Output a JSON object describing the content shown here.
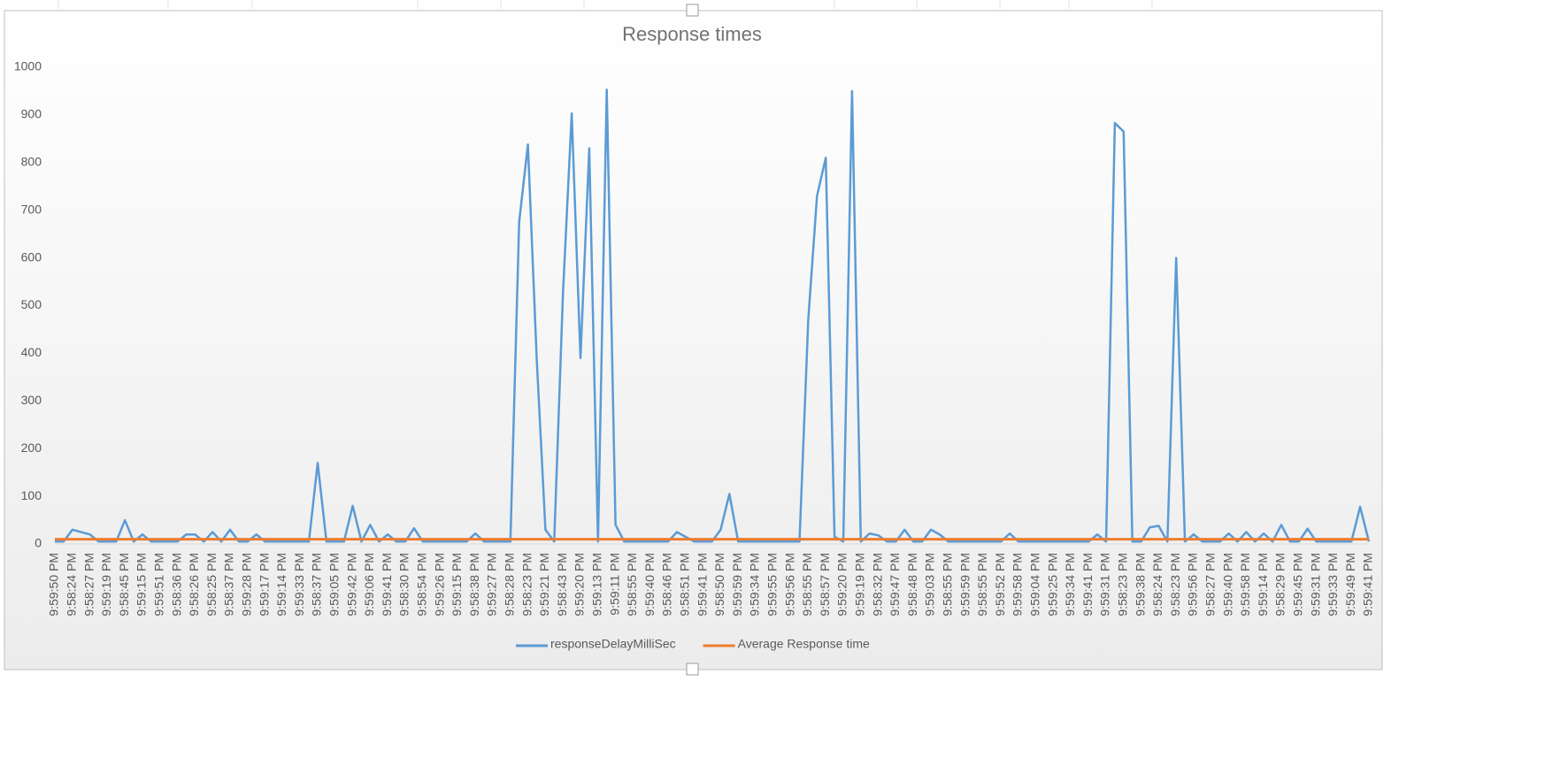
{
  "chart_data": {
    "type": "line",
    "title": "Response times",
    "categories": [
      "9:59:50 PM",
      null,
      "9:58:24 PM",
      null,
      "9:58:27 PM",
      null,
      "9:59:19 PM",
      null,
      "9:58:45 PM",
      null,
      "9:59:15 PM",
      null,
      "9:59:51 PM",
      null,
      "9:58:36 PM",
      null,
      "9:58:26 PM",
      null,
      "9:58:25 PM",
      null,
      "9:58:37 PM",
      null,
      "9:59:28 PM",
      null,
      "9:59:17 PM",
      null,
      "9:59:14 PM",
      null,
      "9:59:33 PM",
      null,
      "9:58:37 PM",
      null,
      "9:59:05 PM",
      null,
      "9:59:42 PM",
      null,
      "9:59:06 PM",
      null,
      "9:59:41 PM",
      null,
      "9:58:30 PM",
      null,
      "9:58:54 PM",
      null,
      "9:59:26 PM",
      null,
      "9:59:15 PM",
      null,
      "9:58:38 PM",
      null,
      "9:59:27 PM",
      null,
      "9:58:28 PM",
      null,
      "9:58:23 PM",
      null,
      "9:59:21 PM",
      null,
      "9:58:43 PM",
      null,
      "9:59:20 PM",
      null,
      "9:59:13 PM",
      null,
      "9:59:11 PM",
      null,
      "9:58:55 PM",
      null,
      "9:59:40 PM",
      null,
      "9:58:46 PM",
      null,
      "9:58:51 PM",
      null,
      "9:59:41 PM",
      null,
      "9:58:50 PM",
      null,
      "9:59:59 PM",
      null,
      "9:59:34 PM",
      null,
      "9:59:55 PM",
      null,
      "9:59:56 PM",
      null,
      "9:58:55 PM",
      null,
      "9:58:57 PM",
      null,
      "9:59:20 PM",
      null,
      "9:59:19 PM",
      null,
      "9:58:32 PM",
      null,
      "9:59:47 PM",
      null,
      "9:58:48 PM",
      null,
      "9:59:03 PM",
      null,
      "9:58:55 PM",
      null,
      "9:59:59 PM",
      null,
      "9:58:55 PM",
      null,
      "9:59:52 PM",
      null,
      "9:59:58 PM",
      null,
      "9:59:04 PM",
      null,
      "9:59:25 PM",
      null,
      "9:59:34 PM",
      null,
      "9:59:41 PM",
      null,
      "9:59:31 PM",
      null,
      "9:58:23 PM",
      null,
      "9:59:38 PM",
      null,
      "9:58:24 PM",
      null,
      "9:58:23 PM",
      null,
      "9:59:56 PM",
      null,
      "9:58:27 PM",
      null,
      "9:59:40 PM",
      null,
      "9:59:58 PM",
      null,
      "9:59:14 PM",
      null,
      "9:58:29 PM",
      null,
      "9:59:45 PM",
      null,
      "9:59:31 PM",
      null,
      "9:59:33 PM",
      null,
      "9:59:49 PM",
      null,
      "9:59:41 PM"
    ],
    "series": [
      {
        "name": "responseDelayMilliSec",
        "color": "#5b9bd5",
        "values": [
          5,
          5,
          30,
          25,
          20,
          5,
          5,
          5,
          50,
          5,
          20,
          5,
          5,
          5,
          5,
          20,
          20,
          5,
          25,
          5,
          30,
          5,
          5,
          20,
          5,
          5,
          5,
          5,
          5,
          5,
          170,
          5,
          5,
          5,
          80,
          5,
          40,
          5,
          20,
          5,
          5,
          33,
          5,
          5,
          5,
          5,
          5,
          5,
          22,
          5,
          5,
          5,
          5,
          675,
          838,
          390,
          30,
          5,
          525,
          903,
          390,
          830,
          5,
          953,
          40,
          5,
          5,
          5,
          5,
          5,
          5,
          25,
          15,
          5,
          5,
          5,
          30,
          105,
          5,
          5,
          5,
          5,
          5,
          5,
          5,
          5,
          470,
          730,
          810,
          15,
          5,
          950,
          5,
          22,
          18,
          5,
          5,
          30,
          5,
          5,
          30,
          20,
          5,
          5,
          5,
          5,
          5,
          5,
          5,
          22,
          5,
          5,
          5,
          5,
          5,
          5,
          5,
          5,
          5,
          20,
          5,
          883,
          865,
          5,
          5,
          35,
          38,
          5,
          600,
          5,
          20,
          5,
          5,
          5,
          22,
          5,
          25,
          5,
          22,
          5,
          40,
          5,
          5,
          32,
          5,
          5,
          5,
          5,
          5,
          78,
          5
        ]
      },
      {
        "name": "Average Response time",
        "color": "#ed7d31",
        "values": [
          10,
          10,
          10,
          10,
          10,
          10,
          10,
          10,
          10,
          10,
          10,
          10,
          10,
          10,
          10,
          10,
          10,
          10,
          10,
          10,
          10,
          10,
          10,
          10,
          10,
          10,
          10,
          10,
          10,
          10,
          10,
          10,
          10,
          10,
          10,
          10,
          10,
          10,
          10,
          10,
          10,
          10,
          10,
          10,
          10,
          10,
          10,
          10,
          10,
          10,
          10,
          10,
          10,
          10,
          10,
          10,
          10,
          10,
          10,
          10,
          10,
          10,
          10,
          10,
          10,
          10,
          10,
          10,
          10,
          10,
          10,
          10,
          10,
          10,
          10,
          10,
          10,
          10,
          10,
          10,
          10,
          10,
          10,
          10,
          10,
          10,
          10,
          10,
          10,
          10,
          10,
          10,
          10,
          10,
          10,
          10,
          10,
          10,
          10,
          10,
          10,
          10,
          10,
          10,
          10,
          10,
          10,
          10,
          10,
          10,
          10,
          10,
          10,
          10,
          10,
          10,
          10,
          10,
          10,
          10,
          10,
          10,
          10,
          10,
          10,
          10,
          10,
          10,
          10,
          10,
          10,
          10,
          10,
          10,
          10,
          10,
          10,
          10,
          10,
          10,
          10,
          10,
          10,
          10,
          10,
          10,
          10,
          10,
          10,
          10,
          10
        ]
      }
    ],
    "ylim": [
      0,
      1000
    ],
    "yticks": [
      0,
      100,
      200,
      300,
      400,
      500,
      600,
      700,
      800,
      900,
      1000
    ],
    "grid": false,
    "legend": "bottom"
  }
}
